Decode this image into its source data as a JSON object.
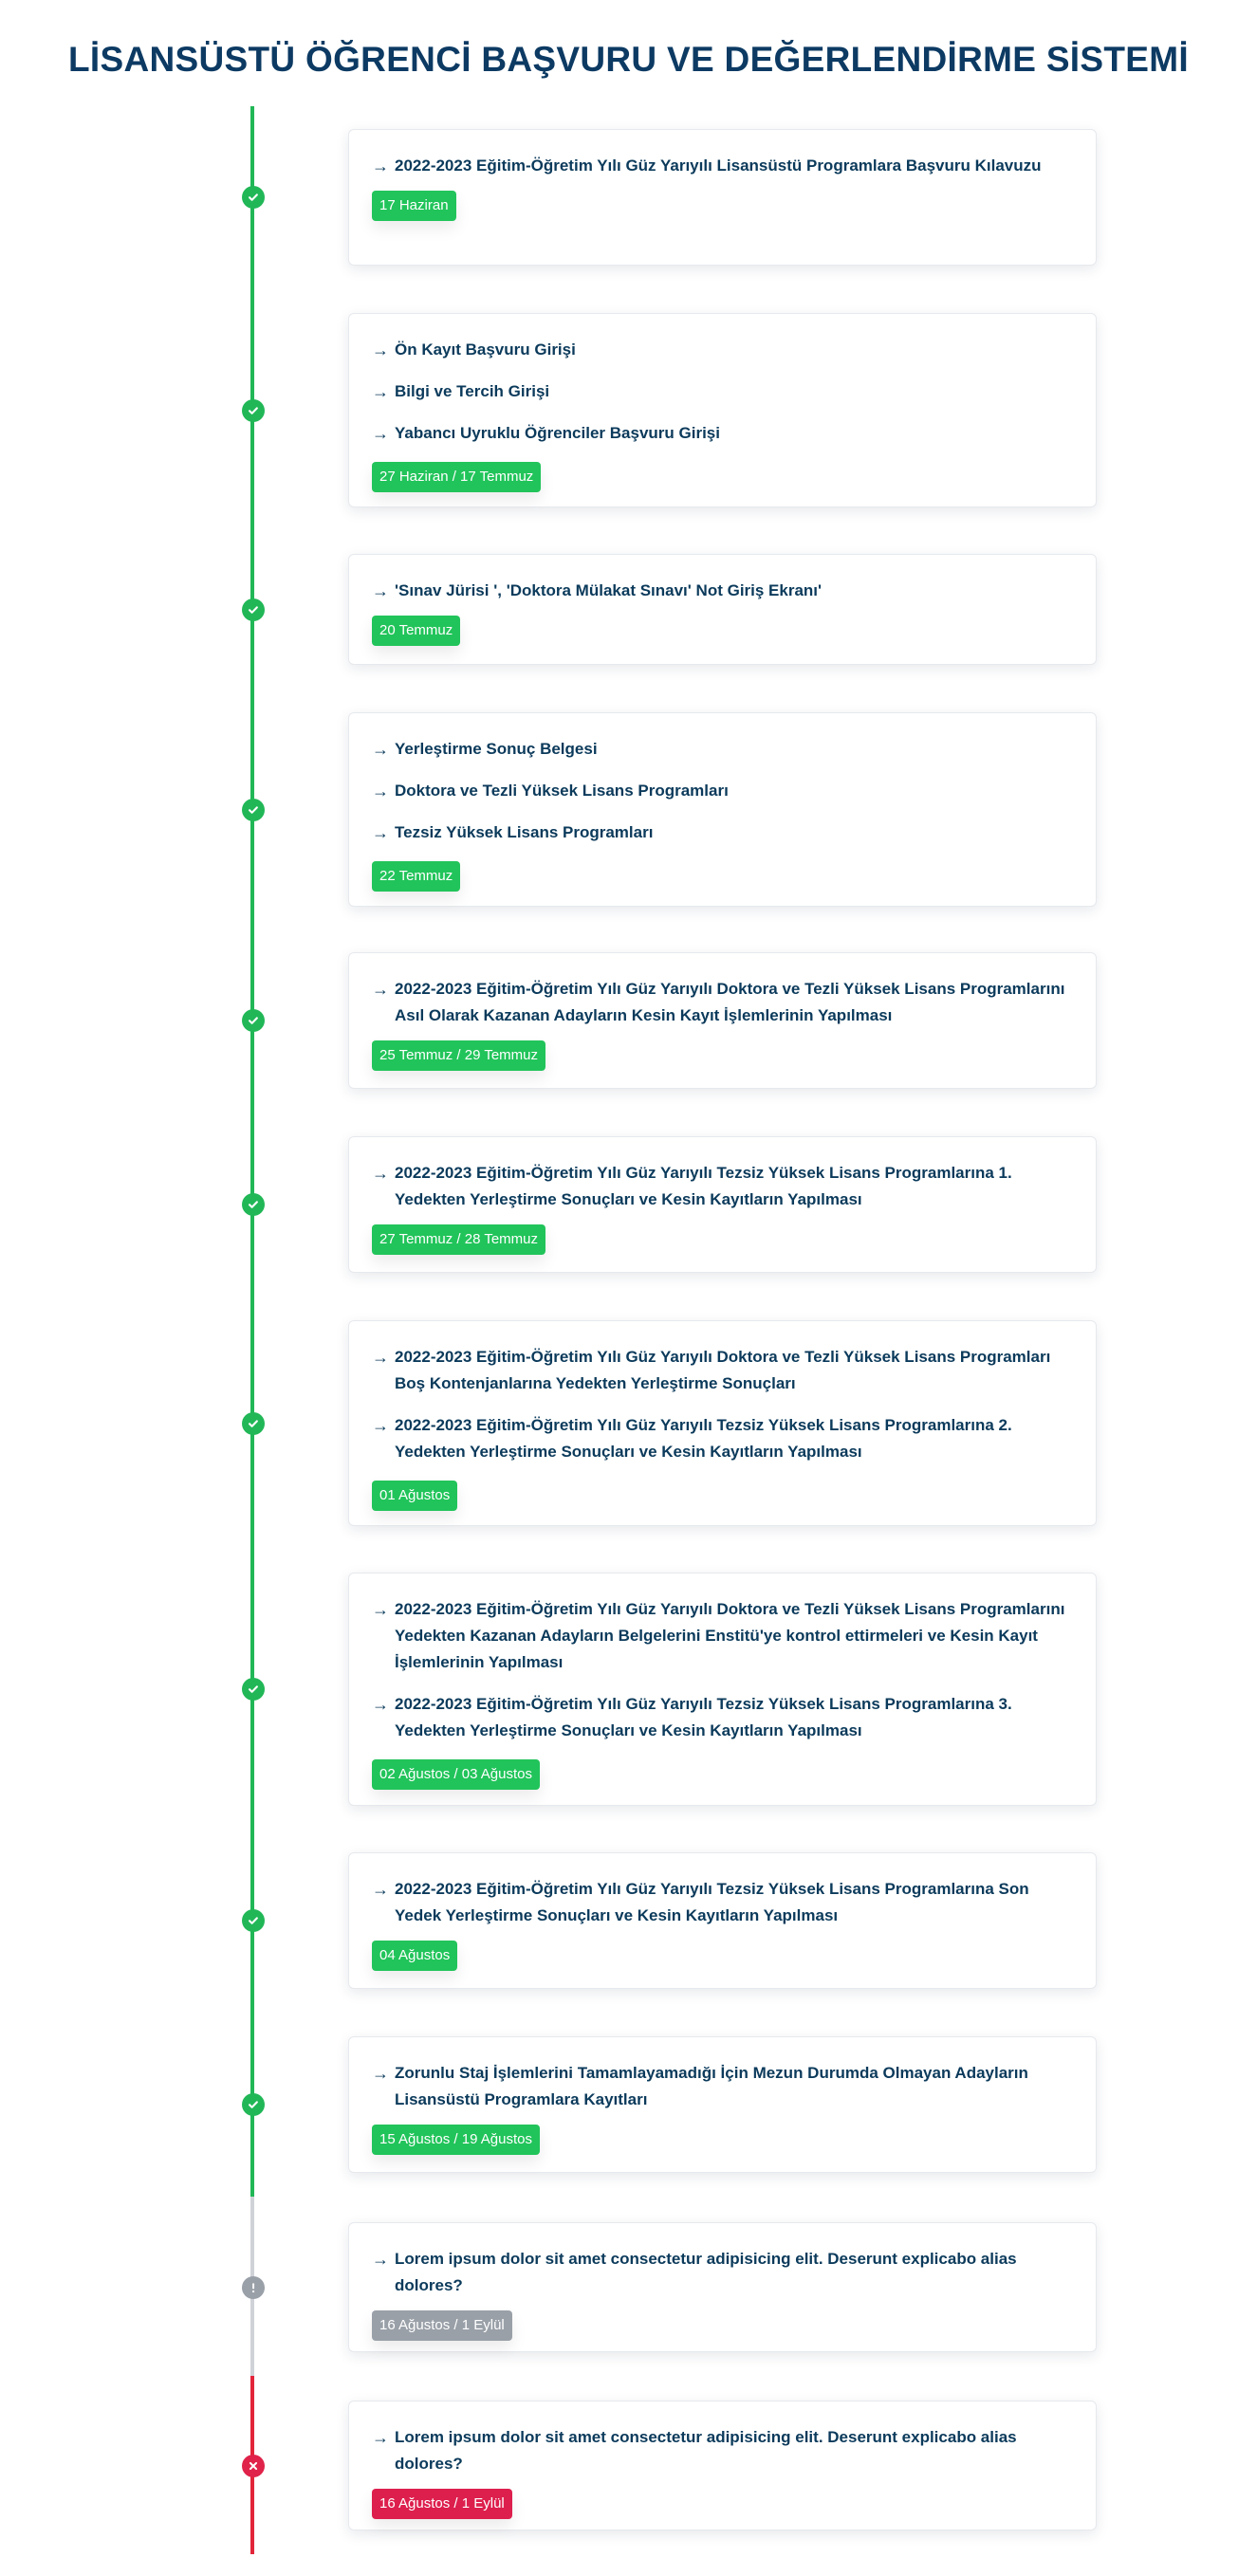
{
  "title": "LİSANSÜSTÜ ÖĞRENCİ BAŞVURU VE DEĞERLENDİRME SİSTEMİ",
  "colors": {
    "done": "#21c45a",
    "pending": "#9aa0a8",
    "failed": "#dd1f4d"
  },
  "steps": [
    {
      "status": "done",
      "items": [
        "2022-2023 Eğitim-Öğretim Yılı Güz Yarıyılı Lisansüstü Programlara Başvuru Kılavuzu"
      ],
      "date": "17 Haziran"
    },
    {
      "status": "done",
      "items": [
        "Ön Kayıt Başvuru Girişi",
        "Bilgi ve Tercih Girişi",
        "Yabancı Uyruklu Öğrenciler Başvuru Girişi"
      ],
      "date": "27 Haziran / 17 Temmuz"
    },
    {
      "status": "done",
      "items": [
        "'Sınav Jürisi ', 'Doktora Mülakat Sınavı' Not Giriş Ekranı'"
      ],
      "date": "20 Temmuz"
    },
    {
      "status": "done",
      "items": [
        "Yerleştirme Sonuç Belgesi",
        "Doktora ve Tezli Yüksek Lisans Programları",
        "Tezsiz Yüksek Lisans Programları"
      ],
      "date": "22 Temmuz"
    },
    {
      "status": "done",
      "items": [
        "2022-2023 Eğitim-Öğretim Yılı Güz Yarıyılı Doktora ve Tezli Yüksek Lisans Programlarını Asıl Olarak Kazanan Adayların Kesin Kayıt İşlemlerinin Yapılması"
      ],
      "date": "25 Temmuz / 29 Temmuz"
    },
    {
      "status": "done",
      "items": [
        "2022-2023 Eğitim-Öğretim Yılı Güz Yarıyılı Tezsiz Yüksek Lisans Programlarına 1. Yedekten Yerleştirme Sonuçları ve Kesin Kayıtların Yapılması"
      ],
      "date": "27 Temmuz / 28 Temmuz"
    },
    {
      "status": "done",
      "items": [
        "2022-2023 Eğitim-Öğretim Yılı Güz Yarıyılı Doktora ve Tezli Yüksek Lisans Programları Boş Kontenjanlarına Yedekten Yerleştirme Sonuçları",
        "2022-2023 Eğitim-Öğretim Yılı Güz Yarıyılı Tezsiz Yüksek Lisans Programlarına 2. Yedekten Yerleştirme Sonuçları ve Kesin Kayıtların Yapılması"
      ],
      "date": "01 Ağustos"
    },
    {
      "status": "done",
      "items": [
        "2022-2023 Eğitim-Öğretim Yılı Güz Yarıyılı Doktora ve Tezli Yüksek Lisans Programlarını Yedekten Kazanan Adayların Belgelerini Enstitü'ye kontrol ettirmeleri ve Kesin Kayıt İşlemlerinin Yapılması",
        "2022-2023 Eğitim-Öğretim Yılı Güz Yarıyılı Tezsiz Yüksek Lisans Programlarına 3. Yedekten Yerleştirme Sonuçları ve Kesin Kayıtların Yapılması"
      ],
      "date": "02 Ağustos / 03 Ağustos"
    },
    {
      "status": "done",
      "items": [
        "2022-2023 Eğitim-Öğretim Yılı Güz Yarıyılı Tezsiz Yüksek Lisans Programlarına Son Yedek Yerleştirme Sonuçları ve Kesin Kayıtların Yapılması"
      ],
      "date": "04 Ağustos"
    },
    {
      "status": "done",
      "items": [
        "Zorunlu Staj İşlemlerini Tamamlayamadığı İçin Mezun Durumda Olmayan Adayların Lisansüstü Programlara Kayıtları"
      ],
      "date": "15 Ağustos / 19 Ağustos"
    },
    {
      "status": "pending",
      "items": [
        "Lorem ipsum dolor sit amet consectetur adipisicing elit. Deserunt explicabo alias dolores?"
      ],
      "date": "16 Ağustos / 1 Eylül"
    },
    {
      "status": "failed",
      "items": [
        "Lorem ipsum dolor sit amet consectetur adipisicing elit. Deserunt explicabo alias dolores?"
      ],
      "date": "16 Ağustos / 1 Eylül"
    }
  ]
}
